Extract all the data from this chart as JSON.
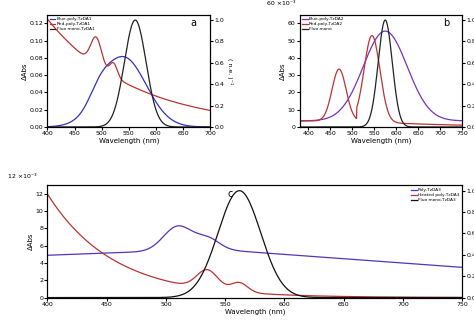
{
  "panel_a": {
    "title": "a",
    "xlabel": "Wavelength (nm)",
    "ylabel_left": "ΔAbs",
    "ylabel_right": "( n.e. )⁻¹",
    "xlim": [
      400,
      700
    ],
    "ylim_left": [
      0,
      0.13
    ],
    "ylim_right": [
      0,
      1.05
    ],
    "yticks_left": [
      0.0,
      0.02,
      0.04,
      0.06,
      0.08,
      0.1,
      0.12
    ],
    "yticks_right": [
      0.0,
      0.2,
      0.4,
      0.6,
      0.8,
      1.0
    ],
    "xticks": [
      400,
      450,
      500,
      550,
      600,
      650,
      700
    ],
    "legend": [
      "Blue-poly-TzDA1",
      "Red-poly-TzDA1",
      "Fluo mono-TzDA1"
    ],
    "colors": [
      "#3333bb",
      "#bb3333",
      "#222222"
    ],
    "scale_label": ""
  },
  "panel_b": {
    "title": "b",
    "xlabel": "Wavelength (nm)",
    "ylabel_left": "ΔAbs",
    "ylabel_right": "( n.e. )⁻¹",
    "xlim": [
      380,
      750
    ],
    "ylim_left": [
      0,
      65
    ],
    "ylim_right": [
      0,
      1.05
    ],
    "yticks_left": [
      0,
      10,
      20,
      30,
      40,
      50,
      60
    ],
    "yticks_right": [
      0.0,
      0.2,
      0.4,
      0.6,
      0.8,
      1.0
    ],
    "xticks": [
      400,
      450,
      500,
      550,
      600,
      650,
      700,
      750
    ],
    "legend": [
      "Blue-poly-TzDA2",
      "Red-poly-TzDA2",
      "Fluo mono"
    ],
    "colors": [
      "#7733bb",
      "#bb3333",
      "#222222"
    ],
    "scale_label": "60 ×10⁻³"
  },
  "panel_c": {
    "title": "c",
    "xlabel": "Wavelength (nm)",
    "ylabel_left": "ΔAbs",
    "ylabel_right": "( n.e. )⁻¹",
    "xlim": [
      400,
      750
    ],
    "ylim_left": [
      0,
      13
    ],
    "ylim_right": [
      0,
      1.05
    ],
    "yticks_left": [
      0,
      2,
      4,
      6,
      8,
      10,
      12
    ],
    "yticks_right": [
      0.0,
      0.2,
      0.4,
      0.6,
      0.8,
      1.0
    ],
    "xticks": [
      400,
      450,
      500,
      550,
      600,
      650,
      700,
      750
    ],
    "legend": [
      "Poly-TzDA3",
      "Heated poly-TzDA3",
      "Fluo mono-TzDA3"
    ],
    "colors": [
      "#5533bb",
      "#bb3333",
      "#111111"
    ],
    "scale_label": "12 ×10⁻³"
  }
}
